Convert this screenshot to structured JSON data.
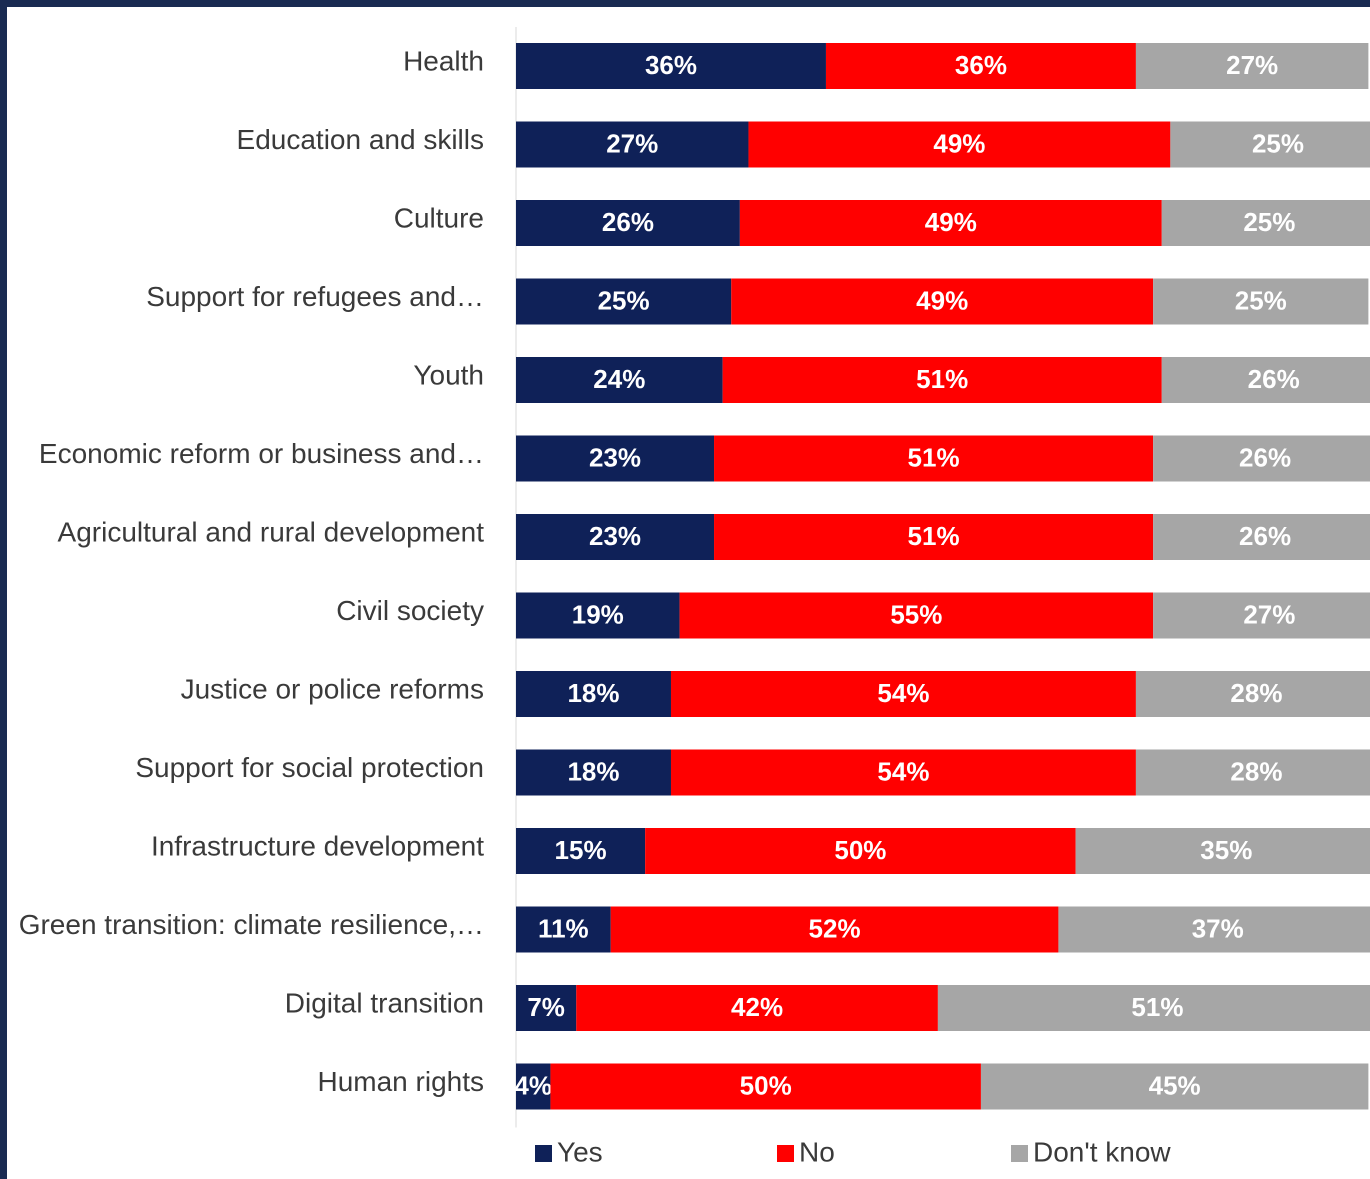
{
  "chart_data": {
    "type": "bar",
    "orientation": "horizontal",
    "stacked": true,
    "title": "",
    "xlabel": "",
    "ylabel": "",
    "xlim": [
      0,
      100
    ],
    "grid": false,
    "legend_position": "bottom",
    "categories": [
      "Health",
      "Education and skills",
      "Culture",
      "Support for refugees and…",
      "Youth",
      "Economic reform or business and…",
      "Agricultural and rural development",
      "Civil society",
      "Justice or police reforms",
      "Support for social protection",
      "Infrastructure development",
      "Green transition: climate resilience,…",
      "Digital transition",
      "Human rights"
    ],
    "series": [
      {
        "name": "Yes",
        "color": "#0f2158",
        "values": [
          36,
          27,
          26,
          25,
          24,
          23,
          23,
          19,
          18,
          18,
          15,
          11,
          7,
          4
        ]
      },
      {
        "name": "No",
        "color": "#ff0000",
        "values": [
          36,
          49,
          49,
          49,
          51,
          51,
          51,
          55,
          54,
          54,
          50,
          52,
          42,
          50
        ]
      },
      {
        "name": "Don't know",
        "color": "#a6a6a6",
        "values": [
          27,
          25,
          25,
          25,
          26,
          26,
          26,
          27,
          28,
          28,
          35,
          37,
          51,
          45
        ]
      }
    ],
    "value_suffix": "%"
  }
}
